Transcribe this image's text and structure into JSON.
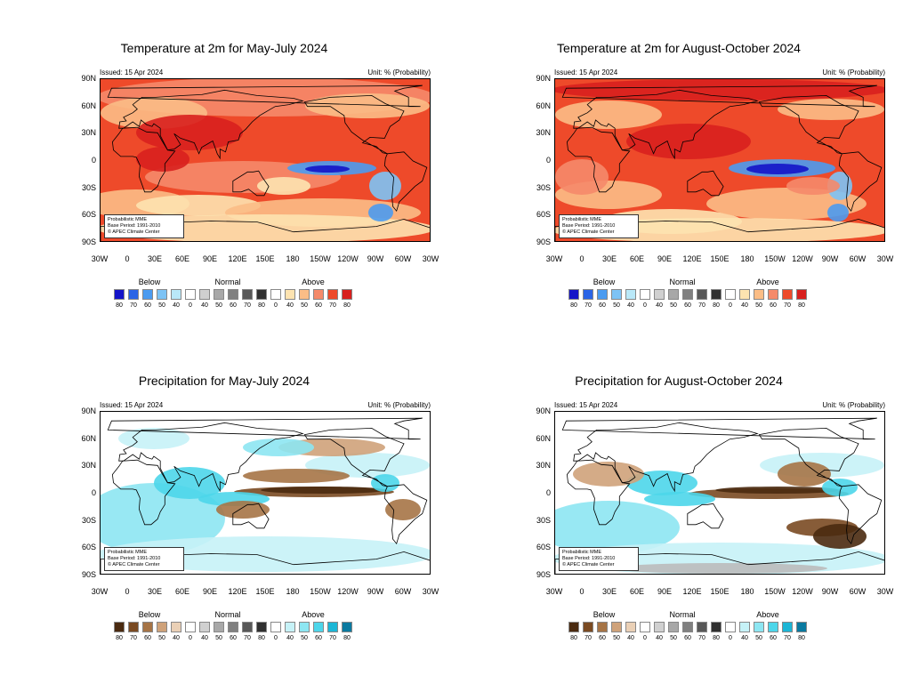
{
  "panels": [
    {
      "title": "Temperature at 2m for May-July 2024",
      "issued": "Issued: 15 Apr 2024",
      "unit": "Unit: % (Probability)",
      "variable": "temperature",
      "info": [
        "Probabilistic MME",
        "Base Period: 1991-2010",
        "© APEC Climate Center"
      ],
      "legend": {
        "below": "Below",
        "normal": "Normal",
        "above": "Above",
        "ticks": [
          "80",
          "70",
          "60",
          "50",
          "40",
          "0",
          "40",
          "50",
          "60",
          "70",
          "80",
          "0",
          "40",
          "50",
          "60",
          "70",
          "80"
        ]
      }
    },
    {
      "title": "Temperature at 2m for August-October 2024",
      "issued": "Issued: 15 Apr 2024",
      "unit": "Unit: % (Probability)",
      "variable": "temperature",
      "info": [
        "Probabilistic MME",
        "Base Period: 1991-2010",
        "© APEC Climate Center"
      ],
      "legend": {
        "below": "Below",
        "normal": "Normal",
        "above": "Above",
        "ticks": [
          "80",
          "70",
          "60",
          "50",
          "40",
          "0",
          "40",
          "50",
          "60",
          "70",
          "80",
          "0",
          "40",
          "50",
          "60",
          "70",
          "80"
        ]
      }
    },
    {
      "title": "Precipitation for May-July 2024",
      "issued": "Issued: 15 Apr 2024",
      "unit": "Unit: % (Probability)",
      "variable": "precipitation",
      "info": [
        "Probabilistic MME",
        "Base Period: 1991-2010",
        "© APEC Climate Center"
      ],
      "legend": {
        "below": "Below",
        "normal": "Normal",
        "above": "Above",
        "ticks": [
          "80",
          "70",
          "60",
          "50",
          "40",
          "0",
          "40",
          "50",
          "60",
          "70",
          "80",
          "0",
          "40",
          "50",
          "60",
          "70",
          "80"
        ]
      }
    },
    {
      "title": "Precipitation for August-October 2024",
      "issued": "Issued: 15 Apr 2024",
      "unit": "Unit: % (Probability)",
      "variable": "precipitation",
      "info": [
        "Probabilistic MME",
        "Base Period: 1991-2010",
        "© APEC Climate Center"
      ],
      "legend": {
        "below": "Below",
        "normal": "Normal",
        "above": "Above",
        "ticks": [
          "80",
          "70",
          "60",
          "50",
          "40",
          "0",
          "40",
          "50",
          "60",
          "70",
          "80",
          "0",
          "40",
          "50",
          "60",
          "70",
          "80"
        ]
      }
    }
  ],
  "axes": {
    "lat_labels": [
      "90N",
      "60N",
      "30N",
      "0",
      "30S",
      "60S",
      "90S"
    ],
    "lon_labels": [
      "30W",
      "0",
      "30E",
      "60E",
      "90E",
      "120E",
      "150E",
      "180",
      "150W",
      "120W",
      "90W",
      "60W",
      "30W"
    ]
  },
  "colors": {
    "temperature": {
      "below": [
        "#1414c8",
        "#2a64e6",
        "#4b9bf0",
        "#7dc3f5",
        "#b9e8f8"
      ],
      "normal": [
        "#ffffff",
        "#d0d0d0",
        "#a8a8a8",
        "#808080",
        "#585858",
        "#303030"
      ],
      "above": [
        "#ffffff",
        "#fde3b0",
        "#fbbd86",
        "#f58a6a",
        "#ee4a2a",
        "#d8201e"
      ]
    },
    "precipitation": {
      "below": [
        "#4a2a10",
        "#7a4a22",
        "#a67446",
        "#cfa27a",
        "#ead0b6"
      ],
      "normal": [
        "#ffffff",
        "#d0d0d0",
        "#a8a8a8",
        "#808080",
        "#585858",
        "#303030"
      ],
      "above": [
        "#ffffff",
        "#c6f2f7",
        "#8de6f2",
        "#4dd6ea",
        "#1cb6d6",
        "#0a7aa0"
      ]
    }
  }
}
